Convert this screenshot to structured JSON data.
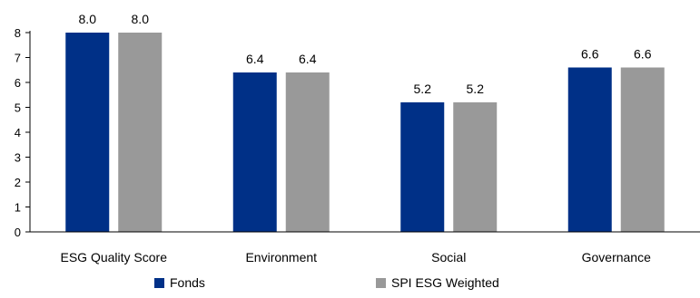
{
  "chart_data": {
    "type": "bar",
    "categories": [
      "ESG Quality Score",
      "Environment",
      "Social",
      "Governance"
    ],
    "series": [
      {
        "name": "Fonds",
        "color": "#003087",
        "values": [
          8.0,
          6.4,
          5.2,
          6.6
        ],
        "labels": [
          "8.0",
          "6.4",
          "5.2",
          "6.6"
        ]
      },
      {
        "name": "SPI ESG Weighted",
        "color": "#999999",
        "values": [
          8.0,
          6.4,
          5.2,
          6.6
        ],
        "labels": [
          "8.0",
          "6.4",
          "5.2",
          "6.6"
        ]
      }
    ],
    "yticks": [
      "0",
      "1",
      "2",
      "3",
      "4",
      "5",
      "6",
      "7",
      "8"
    ],
    "ylim": [
      0,
      8
    ],
    "grid": false,
    "legend": "bottom"
  }
}
